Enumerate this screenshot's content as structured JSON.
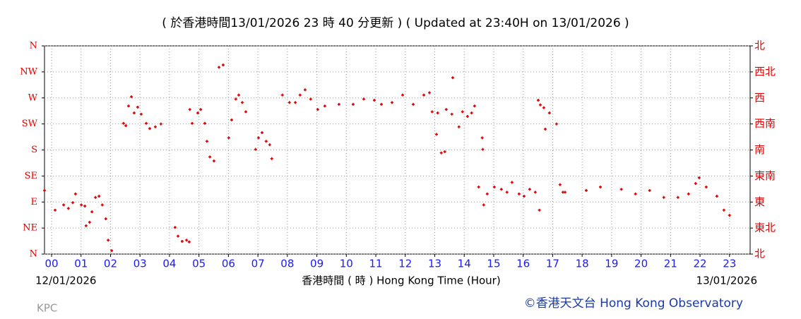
{
  "chart_data": {
    "type": "scatter",
    "title": "( 於香港時間13/01/2026 23 時 40 分更新 ) ( Updated at 23:40H on 13/01/2026 )",
    "x_label": "香港時間 ( 時 )  Hong Kong Time (Hour)",
    "start_date": "12/01/2026",
    "end_date": "13/01/2026",
    "station": "KPC",
    "credit": "©香港天文台 Hong Kong Observatory",
    "color": "#e00000",
    "grid": true,
    "xlim": [
      -0.24,
      23.7
    ],
    "ylim": [
      0,
      360
    ],
    "y2lim": [
      0,
      360
    ],
    "xticks": [
      {
        "value": 0,
        "label": "00"
      },
      {
        "value": 1,
        "label": "01"
      },
      {
        "value": 2,
        "label": "02"
      },
      {
        "value": 3,
        "label": "03"
      },
      {
        "value": 4,
        "label": "04"
      },
      {
        "value": 5,
        "label": "05"
      },
      {
        "value": 6,
        "label": "06"
      },
      {
        "value": 7,
        "label": "07"
      },
      {
        "value": 8,
        "label": "08"
      },
      {
        "value": 9,
        "label": "09"
      },
      10,
      11,
      12,
      13,
      14,
      15,
      16,
      17,
      18,
      19,
      20,
      21,
      22,
      23
    ],
    "yticks": [
      {
        "value": 0,
        "label": "N"
      },
      {
        "value": 45,
        "label": "NE"
      },
      {
        "value": 90,
        "label": "E"
      },
      {
        "value": 135,
        "label": "SE"
      },
      {
        "value": 180,
        "label": "S"
      },
      {
        "value": 225,
        "label": "SW"
      },
      {
        "value": 270,
        "label": "W"
      },
      {
        "value": 315,
        "label": "NW"
      },
      {
        "value": 360,
        "label": "N"
      }
    ],
    "y2ticks": [
      {
        "value": 0,
        "label": "北"
      },
      {
        "value": 45,
        "label": "東北"
      },
      {
        "value": 90,
        "label": "東"
      },
      {
        "value": 135,
        "label": "東南"
      },
      {
        "value": 180,
        "label": "南"
      },
      {
        "value": 225,
        "label": "西南"
      },
      {
        "value": 270,
        "label": "西"
      },
      {
        "value": 315,
        "label": "西北"
      },
      {
        "value": 360,
        "label": "北"
      }
    ],
    "x": [
      -0.24,
      0.12,
      0.41,
      0.57,
      0.72,
      0.81,
      1.01,
      1.13,
      1.17,
      1.29,
      1.37,
      1.49,
      1.61,
      1.72,
      1.84,
      1.92,
      2.04,
      2.44,
      2.52,
      2.61,
      2.71,
      2.8,
      2.92,
      3.04,
      3.21,
      3.33,
      3.52,
      3.71,
      4.19,
      4.29,
      4.43,
      4.58,
      4.67,
      4.69,
      4.77,
      4.96,
      5.06,
      5.2,
      5.27,
      5.37,
      5.51,
      5.68,
      5.82,
      6.01,
      6.11,
      6.25,
      6.35,
      6.47,
      6.59,
      6.92,
      7.02,
      7.14,
      7.28,
      7.4,
      7.47,
      7.83,
      8.07,
      8.27,
      8.43,
      8.6,
      8.79,
      9.03,
      9.27,
      9.75,
      10.23,
      10.59,
      10.95,
      11.19,
      11.55,
      11.91,
      12.27,
      12.63,
      12.82,
      12.91,
      13.1,
      13.06,
      13.22,
      13.34,
      13.61,
      13.39,
      13.58,
      13.82,
      13.94,
      14.11,
      14.25,
      14.35,
      14.61,
      14.63,
      14.49,
      14.66,
      14.78,
      15.02,
      15.26,
      15.45,
      15.62,
      15.86,
      16.03,
      16.22,
      16.41,
      16.51,
      16.58,
      16.55,
      16.7,
      16.75,
      16.89,
      17.13,
      17.25,
      17.35,
      17.42,
      18.14,
      18.62,
      19.33,
      19.81,
      20.29,
      20.77,
      21.25,
      21.61,
      21.85,
      21.97,
      22.21,
      22.57,
      22.81,
      23.0
    ],
    "values": [
      110,
      76,
      85,
      79,
      89,
      104,
      85,
      83,
      49,
      55,
      73,
      98,
      100,
      85,
      61,
      24,
      6,
      226,
      222,
      256,
      272,
      244,
      254,
      242,
      226,
      217,
      220,
      225,
      46,
      31,
      22,
      24,
      21,
      250,
      226,
      244,
      250,
      226,
      195,
      168,
      161,
      323,
      327,
      201,
      232,
      268,
      275,
      262,
      246,
      181,
      201,
      210,
      195,
      189,
      165,
      275,
      262,
      262,
      275,
      284,
      268,
      250,
      256,
      259,
      259,
      268,
      266,
      259,
      262,
      275,
      259,
      275,
      279,
      246,
      244,
      207,
      175,
      177,
      305,
      250,
      242,
      220,
      246,
      238,
      244,
      256,
      201,
      181,
      116,
      85,
      104,
      116,
      112,
      107,
      124,
      104,
      100,
      112,
      107,
      266,
      258,
      76,
      253,
      216,
      244,
      225,
      120,
      107,
      107,
      110,
      116,
      112,
      104,
      110,
      98,
      98,
      104,
      122,
      132,
      116,
      100,
      76,
      67
    ]
  }
}
